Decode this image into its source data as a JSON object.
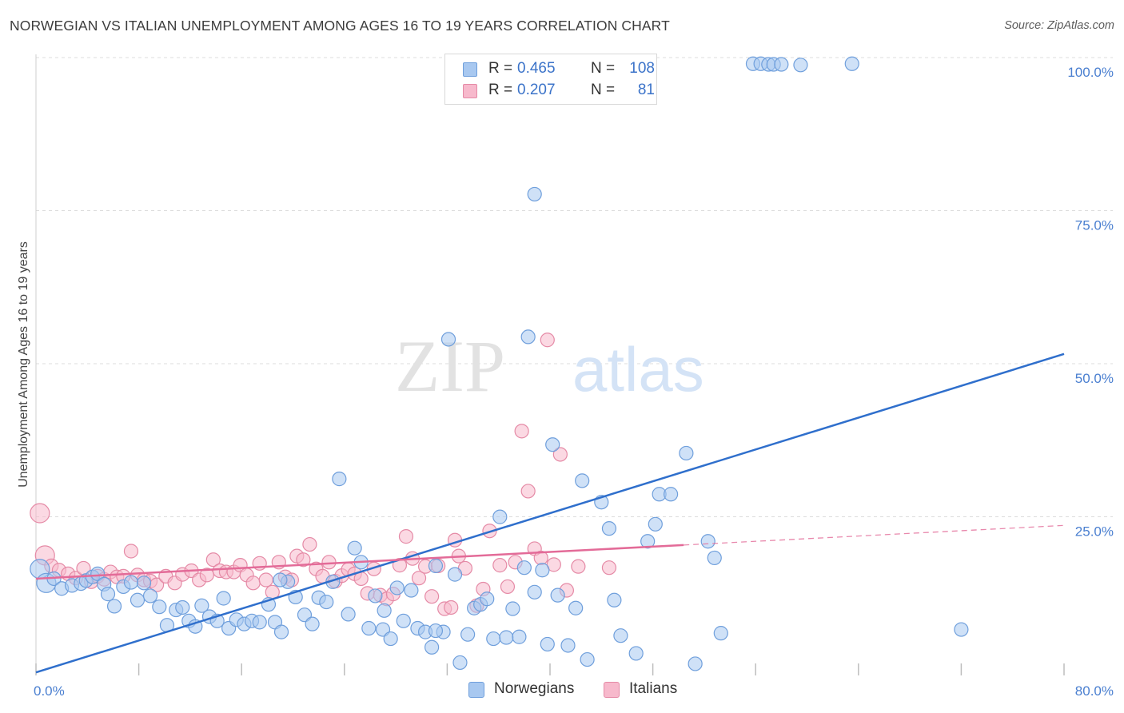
{
  "title": "NORWEGIAN VS ITALIAN UNEMPLOYMENT AMONG AGES 16 TO 19 YEARS CORRELATION CHART",
  "source": "Source: ZipAtlas.com",
  "watermark": {
    "zip": "ZIP",
    "atlas": "atlas"
  },
  "legend": {
    "r_label": "R =",
    "n_label": "N =",
    "rows": [
      {
        "name": "Norwegians",
        "r": "0.465",
        "n": "108",
        "color": "#a8c8f0",
        "stroke": "#6f9fdc"
      },
      {
        "name": "Italians",
        "r": "0.207",
        "n": "81",
        "color": "#f7b9cc",
        "stroke": "#e58aa6"
      }
    ]
  },
  "chart_data": {
    "type": "scatter",
    "ylabel": "Unemployment Among Ages 16 to 19 years",
    "xlim": [
      0,
      80
    ],
    "ylim": [
      0,
      100
    ],
    "x_tick_labels": {
      "0": "0.0%",
      "80": "80.0%"
    },
    "y_tick_labels": [
      {
        "y": 25,
        "label": "25.0%"
      },
      {
        "y": 50,
        "label": "50.0%"
      },
      {
        "y": 75,
        "label": "75.0%"
      },
      {
        "y": 100,
        "label": "100.0%"
      }
    ],
    "grid": "horizontal dashed",
    "series": [
      {
        "name": "Norwegians",
        "color": "#a8c8f0",
        "stroke": "#6f9fdc",
        "line_color": "#2f6fcc",
        "trend": {
          "x": [
            0,
            80
          ],
          "y": [
            0.5,
            52.5
          ]
        },
        "points": [
          [
            0.3,
            17.4
          ],
          [
            0.8,
            15.1
          ],
          [
            1.4,
            15.8
          ],
          [
            2,
            14.2
          ],
          [
            2.8,
            14.7
          ],
          [
            3.5,
            15
          ],
          [
            3.9,
            15.5
          ],
          [
            4.4,
            16.1
          ],
          [
            4.8,
            16.6
          ],
          [
            5.3,
            14.9
          ],
          [
            5.6,
            13.3
          ],
          [
            6.1,
            11.3
          ],
          [
            6.8,
            14.5
          ],
          [
            7.4,
            15.2
          ],
          [
            7.9,
            12.3
          ],
          [
            8.4,
            15.1
          ],
          [
            8.9,
            13
          ],
          [
            9.6,
            11.2
          ],
          [
            10.2,
            8.2
          ],
          [
            10.9,
            10.7
          ],
          [
            11.4,
            11.1
          ],
          [
            11.9,
            8.9
          ],
          [
            12.4,
            8
          ],
          [
            12.9,
            11.4
          ],
          [
            13.5,
            9.6
          ],
          [
            14.1,
            8.9
          ],
          [
            14.6,
            12.6
          ],
          [
            15,
            7.7
          ],
          [
            15.6,
            9.1
          ],
          [
            16.2,
            8.4
          ],
          [
            16.8,
            8.9
          ],
          [
            17.4,
            8.7
          ],
          [
            18.1,
            11.6
          ],
          [
            18.6,
            8.7
          ],
          [
            19.1,
            7.1
          ],
          [
            19.6,
            15.3
          ],
          [
            20.2,
            12.8
          ],
          [
            20.9,
            9.9
          ],
          [
            21.5,
            8.4
          ],
          [
            22,
            12.7
          ],
          [
            22.6,
            12
          ],
          [
            23.1,
            15.3
          ],
          [
            23.6,
            32.1
          ],
          [
            24.3,
            10
          ],
          [
            24.8,
            20.8
          ],
          [
            25.3,
            18.5
          ],
          [
            25.9,
            7.7
          ],
          [
            26.4,
            13
          ],
          [
            27,
            7.5
          ],
          [
            27.6,
            6
          ],
          [
            28.1,
            14.3
          ],
          [
            28.6,
            8.9
          ],
          [
            29.2,
            13.9
          ],
          [
            29.7,
            7.7
          ],
          [
            30.3,
            7.1
          ],
          [
            30.8,
            4.6
          ],
          [
            31.1,
            17.9
          ],
          [
            31.7,
            7.1
          ],
          [
            32.1,
            54.9
          ],
          [
            32.6,
            16.5
          ],
          [
            33,
            2.1
          ],
          [
            33.6,
            6.7
          ],
          [
            34.1,
            11
          ],
          [
            34.6,
            11.6
          ],
          [
            35.1,
            12.5
          ],
          [
            35.6,
            6
          ],
          [
            36.1,
            25.9
          ],
          [
            36.6,
            6.2
          ],
          [
            37.1,
            10.9
          ],
          [
            37.6,
            6.3
          ],
          [
            38,
            17.6
          ],
          [
            38.3,
            55.3
          ],
          [
            38.8,
            13.6
          ],
          [
            39.4,
            17.2
          ],
          [
            39.8,
            5.1
          ],
          [
            40.2,
            37.7
          ],
          [
            40.6,
            13.1
          ],
          [
            41.4,
            4.9
          ],
          [
            42,
            11
          ],
          [
            42.5,
            31.8
          ],
          [
            42.9,
            2.6
          ],
          [
            43,
            99.9
          ],
          [
            44,
            28.3
          ],
          [
            44.6,
            24
          ],
          [
            45,
            12.3
          ],
          [
            45.5,
            6.5
          ],
          [
            46.7,
            3.6
          ],
          [
            47.6,
            21.9
          ],
          [
            48.2,
            24.7
          ],
          [
            48.5,
            29.6
          ],
          [
            49.4,
            29.6
          ],
          [
            50.6,
            36.3
          ],
          [
            51.3,
            1.9
          ],
          [
            52.3,
            21.9
          ],
          [
            52.8,
            19.2
          ],
          [
            53.3,
            6.9
          ],
          [
            55.8,
            99.9
          ],
          [
            56.4,
            99.9
          ],
          [
            57,
            99.8
          ],
          [
            57.4,
            99.8
          ],
          [
            58,
            99.8
          ],
          [
            59.5,
            99.7
          ],
          [
            63.5,
            99.9
          ],
          [
            72,
            7.5
          ],
          [
            38.8,
            78.6
          ],
          [
            19,
            15.6
          ],
          [
            31.1,
            7.3
          ],
          [
            27.1,
            10.6
          ]
        ]
      },
      {
        "name": "Italians",
        "color": "#f7b9cc",
        "stroke": "#e58aa6",
        "line_color": "#e36b98",
        "trend": {
          "x": [
            0,
            50.4
          ],
          "y": [
            15.8,
            21.3
          ]
        },
        "trend_ext": {
          "x": [
            50.4,
            80
          ],
          "y": [
            21.3,
            24.5
          ]
        },
        "points": [
          [
            0.3,
            26.5
          ],
          [
            0.7,
            19.6
          ],
          [
            1.2,
            17.9
          ],
          [
            1.8,
            17.2
          ],
          [
            2.5,
            16.6
          ],
          [
            3.1,
            15.9
          ],
          [
            3.7,
            17.5
          ],
          [
            4.3,
            15.3
          ],
          [
            4.8,
            16.2
          ],
          [
            5.3,
            15.7
          ],
          [
            5.8,
            16.9
          ],
          [
            6.3,
            16.1
          ],
          [
            6.8,
            16.2
          ],
          [
            7.4,
            20.3
          ],
          [
            7.9,
            16.4
          ],
          [
            8.4,
            15.6
          ],
          [
            8.9,
            15.4
          ],
          [
            9.4,
            14.8
          ],
          [
            10.1,
            16.2
          ],
          [
            10.8,
            15.1
          ],
          [
            11.4,
            16.5
          ],
          [
            12.1,
            17.1
          ],
          [
            12.7,
            15.6
          ],
          [
            13.3,
            16.4
          ],
          [
            13.8,
            18.9
          ],
          [
            14.3,
            17.1
          ],
          [
            14.8,
            16.9
          ],
          [
            15.4,
            16.9
          ],
          [
            15.9,
            18
          ],
          [
            16.4,
            16.4
          ],
          [
            16.9,
            15.1
          ],
          [
            17.4,
            18.3
          ],
          [
            17.9,
            15.6
          ],
          [
            18.4,
            13.6
          ],
          [
            18.9,
            18.5
          ],
          [
            19.4,
            16.1
          ],
          [
            19.9,
            15.6
          ],
          [
            20.3,
            19.5
          ],
          [
            20.8,
            18.9
          ],
          [
            21.3,
            21.4
          ],
          [
            21.8,
            17.4
          ],
          [
            22.3,
            16.2
          ],
          [
            22.8,
            18.5
          ],
          [
            23.3,
            15.4
          ],
          [
            23.8,
            16.3
          ],
          [
            24.3,
            17.3
          ],
          [
            24.8,
            16.6
          ],
          [
            25.3,
            15.8
          ],
          [
            25.8,
            13.4
          ],
          [
            26.3,
            17.4
          ],
          [
            26.8,
            13.1
          ],
          [
            27.3,
            12.5
          ],
          [
            27.8,
            13.3
          ],
          [
            28.3,
            18
          ],
          [
            28.8,
            22.7
          ],
          [
            29.3,
            19.1
          ],
          [
            29.8,
            15.9
          ],
          [
            30.3,
            17.8
          ],
          [
            30.8,
            12.9
          ],
          [
            31.3,
            17.9
          ],
          [
            31.8,
            10.9
          ],
          [
            32.3,
            11.1
          ],
          [
            32.6,
            22.1
          ],
          [
            32.9,
            19.5
          ],
          [
            33.4,
            17.5
          ],
          [
            34.3,
            11.4
          ],
          [
            34.8,
            14.1
          ],
          [
            35.3,
            23.6
          ],
          [
            36.1,
            18
          ],
          [
            36.7,
            14.5
          ],
          [
            37.3,
            18.5
          ],
          [
            37.8,
            39.9
          ],
          [
            38.3,
            30.1
          ],
          [
            38.8,
            20.7
          ],
          [
            39.3,
            19.2
          ],
          [
            39.8,
            54.8
          ],
          [
            40.3,
            18.1
          ],
          [
            40.8,
            36.1
          ],
          [
            41.3,
            13.9
          ],
          [
            42.2,
            17.8
          ],
          [
            44.6,
            17.6
          ]
        ]
      }
    ]
  }
}
